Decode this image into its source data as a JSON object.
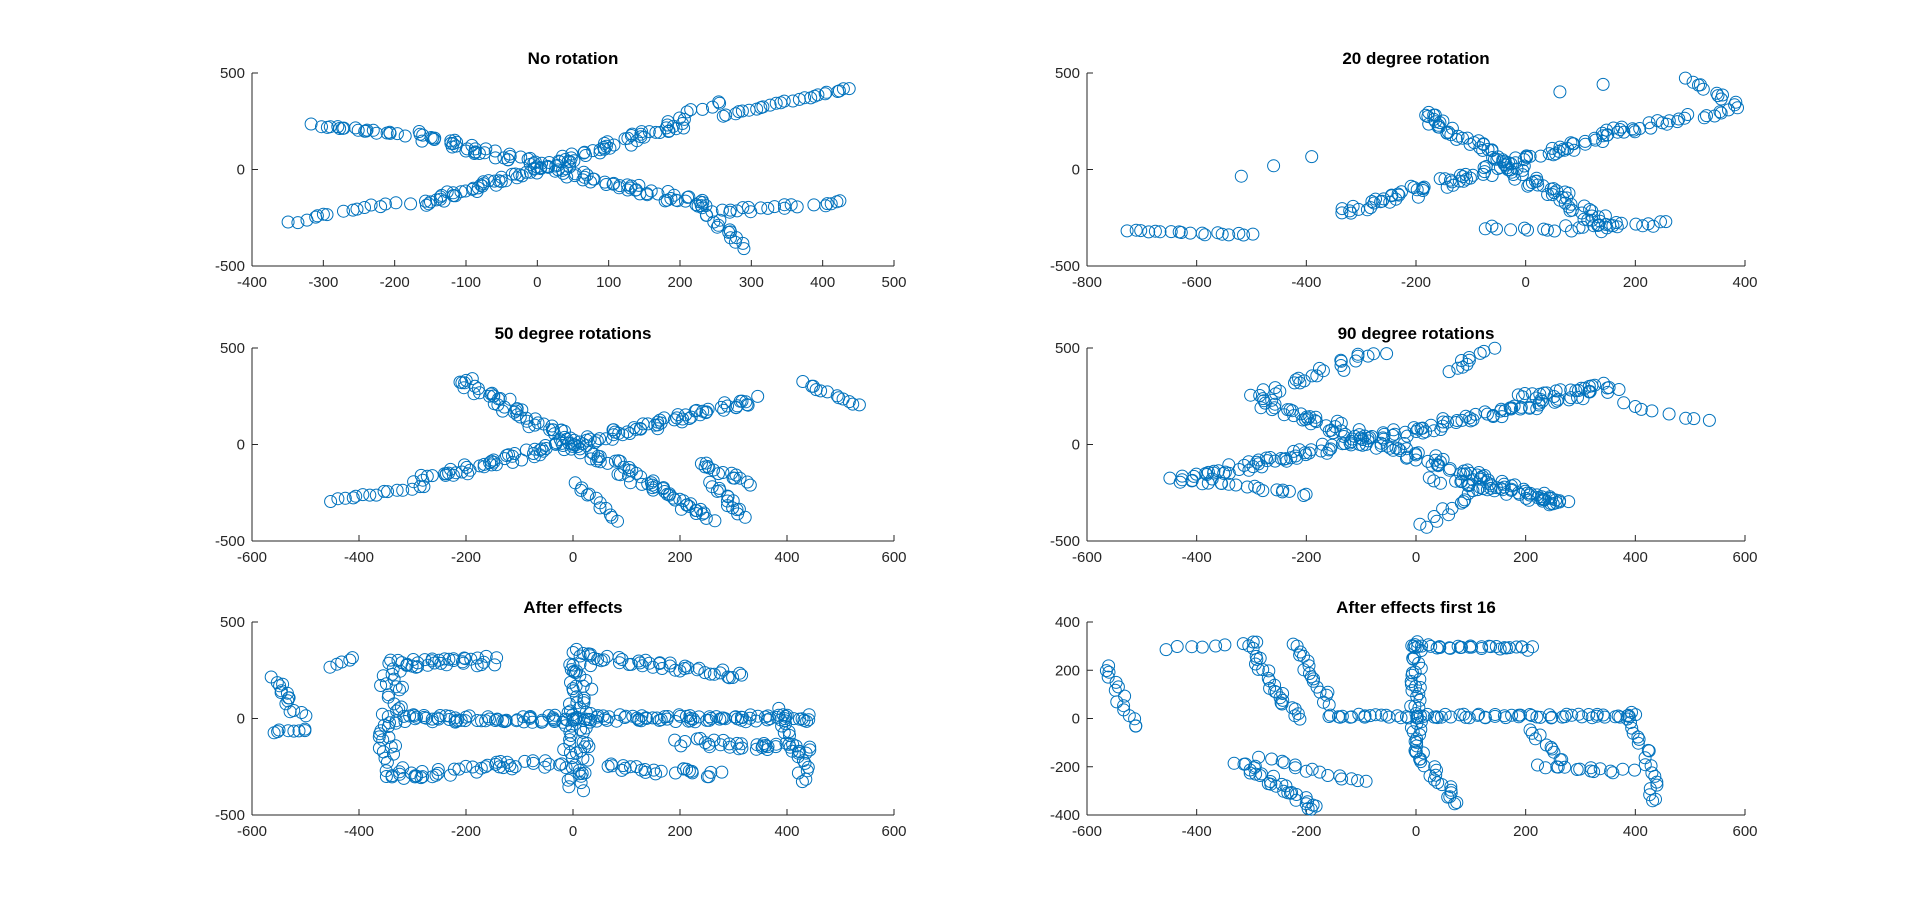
{
  "figure": {
    "background": "#ffffff",
    "marker_color": "#0072bd",
    "axis_color": "#262626"
  },
  "chart_data": [
    {
      "type": "scatter",
      "title": "No rotation",
      "xlim": [
        -400,
        500
      ],
      "ylim": [
        -500,
        500
      ],
      "xticks": [
        "-400",
        "-300",
        "-200",
        "-100",
        "0",
        "100",
        "200",
        "300",
        "400",
        "500"
      ],
      "yticks": [
        "500",
        "0",
        "-500"
      ],
      "grid": false,
      "strokes": [
        {
          "from": [
            -170,
            180
          ],
          "to": [
            230,
            -180
          ],
          "n": 90,
          "spread": 35
        },
        {
          "from": [
            -170,
            -190
          ],
          "to": [
            200,
            230
          ],
          "n": 90,
          "spread": 30
        },
        {
          "from": [
            180,
            240
          ],
          "to": [
            260,
            350
          ],
          "n": 10,
          "spread": 20
        },
        {
          "from": [
            260,
            280
          ],
          "to": [
            440,
            420
          ],
          "n": 25,
          "spread": 10
        },
        {
          "from": [
            -310,
            230
          ],
          "to": [
            -190,
            180
          ],
          "n": 20,
          "spread": 15
        },
        {
          "from": [
            -350,
            -280
          ],
          "to": [
            -200,
            -170
          ],
          "n": 15,
          "spread": 20
        },
        {
          "from": [
            220,
            -150
          ],
          "to": [
            290,
            -400
          ],
          "n": 20,
          "spread": 20
        },
        {
          "from": [
            250,
            -220
          ],
          "to": [
            430,
            -170
          ],
          "n": 20,
          "spread": 25
        }
      ]
    },
    {
      "type": "scatter",
      "title": "20 degree rotation",
      "xlim": [
        -800,
        400
      ],
      "ylim": [
        -500,
        500
      ],
      "xticks": [
        "-800",
        "-600",
        "-400",
        "-200",
        "0",
        "200",
        "400"
      ],
      "yticks": [
        "500",
        "0",
        "-500"
      ],
      "grid": false,
      "strokes": [
        {
          "from": [
            -190,
            290
          ],
          "to": [
            160,
            -310
          ],
          "n": 90,
          "spread": 40
        },
        {
          "from": [
            -330,
            -220
          ],
          "to": [
            190,
            210
          ],
          "n": 90,
          "spread": 40
        },
        {
          "from": [
            190,
            210
          ],
          "to": [
            360,
            300
          ],
          "n": 20,
          "spread": 30
        },
        {
          "from": [
            300,
            470
          ],
          "to": [
            390,
            320
          ],
          "n": 12,
          "spread": 20
        },
        {
          "from": [
            -730,
            -320
          ],
          "to": [
            -500,
            -340
          ],
          "n": 18,
          "spread": 15
        },
        {
          "from": [
            -520,
            -30
          ],
          "to": [
            -390,
            70
          ],
          "n": 3,
          "spread": 10
        },
        {
          "from": [
            80,
            -300
          ],
          "to": [
            250,
            -280
          ],
          "n": 15,
          "spread": 25
        },
        {
          "from": [
            -80,
            -300
          ],
          "to": [
            80,
            -320
          ],
          "n": 10,
          "spread": 20
        },
        {
          "from": [
            60,
            400
          ],
          "to": [
            140,
            440
          ],
          "n": 2,
          "spread": 5
        }
      ]
    },
    {
      "type": "scatter",
      "title": "50 degree rotations",
      "xlim": [
        -600,
        600
      ],
      "ylim": [
        -500,
        500
      ],
      "xticks": [
        "-600",
        "-400",
        "-200",
        "0",
        "200",
        "400",
        "600"
      ],
      "yticks": [
        "500",
        "0",
        "-500"
      ],
      "grid": false,
      "strokes": [
        {
          "from": [
            -210,
            330
          ],
          "to": [
            260,
            -380
          ],
          "n": 110,
          "spread": 40
        },
        {
          "from": [
            -280,
            -180
          ],
          "to": [
            340,
            230
          ],
          "n": 110,
          "spread": 40
        },
        {
          "from": [
            -450,
            -290
          ],
          "to": [
            -280,
            -220
          ],
          "n": 15,
          "spread": 15
        },
        {
          "from": [
            430,
            320
          ],
          "to": [
            540,
            200
          ],
          "n": 12,
          "spread": 15
        },
        {
          "from": [
            240,
            -100
          ],
          "to": [
            330,
            -200
          ],
          "n": 15,
          "spread": 25
        },
        {
          "from": [
            0,
            -200
          ],
          "to": [
            80,
            -390
          ],
          "n": 12,
          "spread": 20
        },
        {
          "from": [
            260,
            -200
          ],
          "to": [
            320,
            -370
          ],
          "n": 15,
          "spread": 20
        }
      ]
    },
    {
      "type": "scatter",
      "title": "90 degree rotations",
      "xlim": [
        -600,
        600
      ],
      "ylim": [
        -500,
        500
      ],
      "xticks": [
        "-600",
        "-400",
        "-200",
        "0",
        "200",
        "400",
        "600"
      ],
      "yticks": [
        "500",
        "0",
        "-500"
      ],
      "grid": false,
      "strokes": [
        {
          "from": [
            -420,
            -180
          ],
          "to": [
            360,
            300
          ],
          "n": 130,
          "spread": 45
        },
        {
          "from": [
            -290,
            250
          ],
          "to": [
            -70,
            480
          ],
          "n": 25,
          "spread": 40
        },
        {
          "from": [
            -290,
            220
          ],
          "to": [
            270,
            -310
          ],
          "n": 110,
          "spread": 50
        },
        {
          "from": [
            40,
            -180
          ],
          "to": [
            280,
            -300
          ],
          "n": 30,
          "spread": 35
        },
        {
          "from": [
            10,
            -420
          ],
          "to": [
            140,
            -200
          ],
          "n": 15,
          "spread": 25
        },
        {
          "from": [
            60,
            380
          ],
          "to": [
            160,
            560
          ],
          "n": 15,
          "spread": 25
        },
        {
          "from": [
            180,
            250
          ],
          "to": [
            330,
            300
          ],
          "n": 15,
          "spread": 15
        },
        {
          "from": [
            370,
            210
          ],
          "to": [
            530,
            120
          ],
          "n": 8,
          "spread": 20
        },
        {
          "from": [
            -440,
            -180
          ],
          "to": [
            -200,
            -260
          ],
          "n": 20,
          "spread": 20
        }
      ]
    },
    {
      "type": "scatter",
      "title": "After effects",
      "xlim": [
        -600,
        600
      ],
      "ylim": [
        -500,
        500
      ],
      "xticks": [
        "-600",
        "-400",
        "-200",
        "0",
        "200",
        "400",
        "600"
      ],
      "yticks": [
        "500",
        "0",
        "-500"
      ],
      "grid": false,
      "strokes": [
        {
          "from": [
            -330,
            0
          ],
          "to": [
            450,
            0
          ],
          "n": 140,
          "spread": 40
        },
        {
          "from": [
            0,
            -350
          ],
          "to": [
            20,
            350
          ],
          "n": 70,
          "spread": 50
        },
        {
          "from": [
            20,
            320
          ],
          "to": [
            320,
            220
          ],
          "n": 40,
          "spread": 35
        },
        {
          "from": [
            -330,
            280
          ],
          "to": [
            -160,
            300
          ],
          "n": 35,
          "spread": 50
        },
        {
          "from": [
            -340,
            280
          ],
          "to": [
            -340,
            -300
          ],
          "n": 40,
          "spread": 45
        },
        {
          "from": [
            -340,
            -300
          ],
          "to": [
            -30,
            -220
          ],
          "n": 40,
          "spread": 45
        },
        {
          "from": [
            -560,
            210
          ],
          "to": [
            -510,
            10
          ],
          "n": 15,
          "spread": 25
        },
        {
          "from": [
            -560,
            -70
          ],
          "to": [
            -500,
            -60
          ],
          "n": 8,
          "spread": 15
        },
        {
          "from": [
            -450,
            270
          ],
          "to": [
            -410,
            320
          ],
          "n": 5,
          "spread": 10
        },
        {
          "from": [
            200,
            -120
          ],
          "to": [
            450,
            -160
          ],
          "n": 35,
          "spread": 45
        },
        {
          "from": [
            380,
            40
          ],
          "to": [
            440,
            -330
          ],
          "n": 20,
          "spread": 25
        },
        {
          "from": [
            60,
            -250
          ],
          "to": [
            270,
            -290
          ],
          "n": 25,
          "spread": 40
        }
      ]
    },
    {
      "type": "scatter",
      "title": "After effects first 16",
      "xlim": [
        -600,
        600
      ],
      "ylim": [
        -400,
        400
      ],
      "xticks": [
        "-600",
        "-400",
        "-200",
        "0",
        "200",
        "400",
        "600"
      ],
      "yticks": [
        "400",
        "200",
        "0",
        "-200",
        "-400"
      ],
      "grid": false,
      "strokes": [
        {
          "from": [
            -570,
            220
          ],
          "to": [
            -510,
            -40
          ],
          "n": 15,
          "spread": 20
        },
        {
          "from": [
            -450,
            290
          ],
          "to": [
            -300,
            310
          ],
          "n": 8,
          "spread": 15
        },
        {
          "from": [
            -300,
            310
          ],
          "to": [
            -250,
            80
          ],
          "n": 18,
          "spread": 25
        },
        {
          "from": [
            -250,
            80
          ],
          "to": [
            -210,
            0
          ],
          "n": 8,
          "spread": 15
        },
        {
          "from": [
            -220,
            310
          ],
          "to": [
            -160,
            60
          ],
          "n": 18,
          "spread": 20
        },
        {
          "from": [
            -160,
            10
          ],
          "to": [
            400,
            10
          ],
          "n": 70,
          "spread": 15
        },
        {
          "from": [
            0,
            320
          ],
          "to": [
            0,
            -140
          ],
          "n": 40,
          "spread": 20
        },
        {
          "from": [
            0,
            300
          ],
          "to": [
            210,
            290
          ],
          "n": 30,
          "spread": 15
        },
        {
          "from": [
            0,
            -140
          ],
          "to": [
            80,
            -350
          ],
          "n": 20,
          "spread": 20
        },
        {
          "from": [
            -320,
            -180
          ],
          "to": [
            -180,
            -380
          ],
          "n": 30,
          "spread": 25
        },
        {
          "from": [
            -280,
            -170
          ],
          "to": [
            -90,
            -270
          ],
          "n": 15,
          "spread": 20
        },
        {
          "from": [
            210,
            -40
          ],
          "to": [
            260,
            -180
          ],
          "n": 10,
          "spread": 20
        },
        {
          "from": [
            390,
            30
          ],
          "to": [
            440,
            -340
          ],
          "n": 22,
          "spread": 25
        },
        {
          "from": [
            230,
            -200
          ],
          "to": [
            390,
            -220
          ],
          "n": 15,
          "spread": 20
        }
      ]
    }
  ]
}
